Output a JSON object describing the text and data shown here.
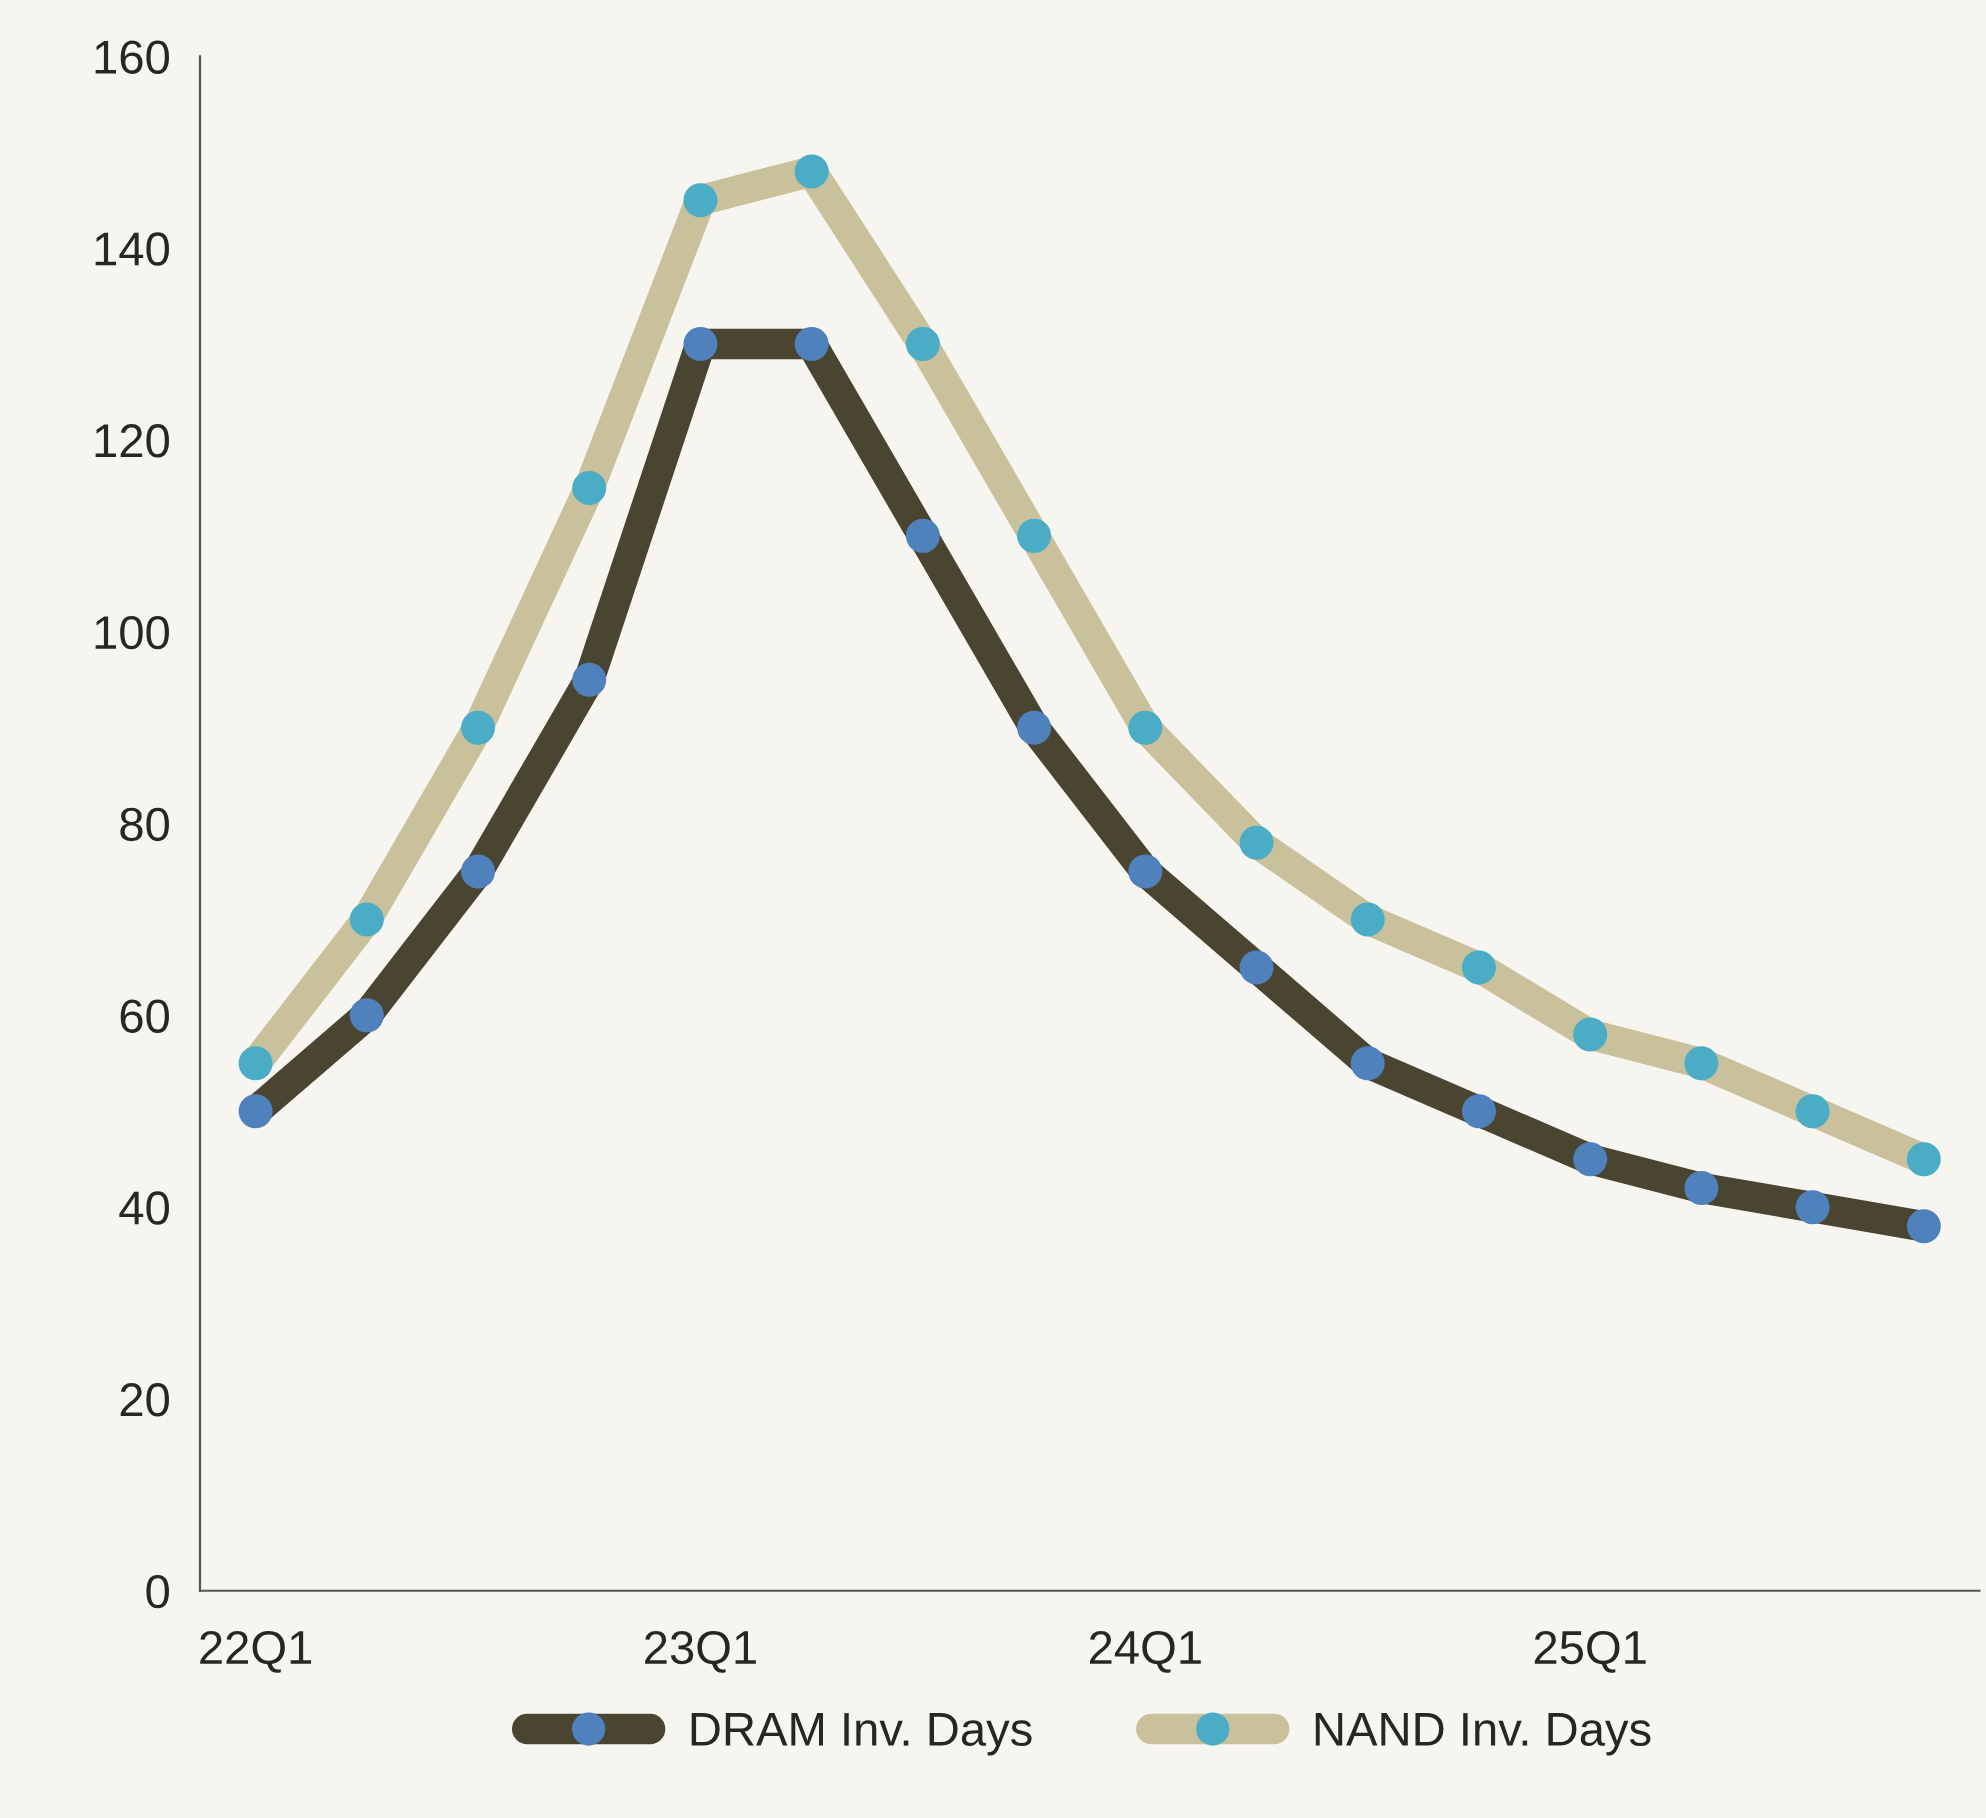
{
  "chart_data": {
    "type": "line",
    "categories": [
      "22Q1",
      null,
      null,
      null,
      "23Q1",
      null,
      null,
      null,
      "24Q1",
      null,
      null,
      null,
      "25Q1",
      null,
      null,
      null
    ],
    "series": [
      {
        "name": "DRAM Inv. Days",
        "color": "#4a4530",
        "values": [
          50,
          60,
          75,
          95,
          130,
          130,
          110,
          90,
          75,
          65,
          55,
          50,
          45,
          42,
          40,
          38
        ]
      },
      {
        "name": "NAND Inv. Days",
        "color": "#c9c09c",
        "values": [
          55,
          70,
          90,
          115,
          145,
          148,
          130,
          110,
          90,
          78,
          70,
          65,
          58,
          55,
          50,
          45
        ]
      }
    ],
    "ylim": [
      0,
      160
    ],
    "yticks": [
      0,
      20,
      40,
      60,
      80,
      100,
      120,
      140,
      160
    ],
    "grid": false,
    "legend": "bottom",
    "marker": "circle",
    "line_style": "solid"
  }
}
